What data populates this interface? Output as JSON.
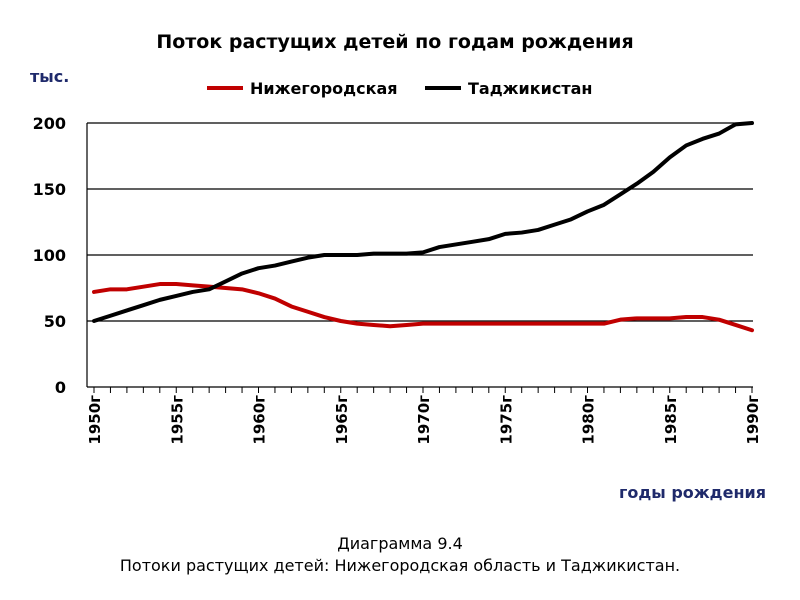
{
  "chart_data": {
    "type": "line",
    "title": "Поток растущих детей  по годам рождения",
    "ylabel": "тыс.",
    "xlabel": "годы рождения",
    "ylim": [
      0,
      200
    ],
    "yticks": [
      0,
      50,
      100,
      150,
      200
    ],
    "grid": true,
    "legend_position": "top",
    "x_tick_labels": [
      "1950г",
      "1955г",
      "1960г",
      "1965г",
      "1970г",
      "1975г",
      "1980г",
      "1985г",
      "1990г"
    ],
    "x": [
      1950,
      1951,
      1952,
      1953,
      1954,
      1955,
      1956,
      1957,
      1958,
      1959,
      1960,
      1961,
      1962,
      1963,
      1964,
      1965,
      1966,
      1967,
      1968,
      1969,
      1970,
      1971,
      1972,
      1973,
      1974,
      1975,
      1976,
      1977,
      1978,
      1979,
      1980,
      1981,
      1982,
      1983,
      1984,
      1985,
      1986,
      1987,
      1988,
      1989,
      1990
    ],
    "series": [
      {
        "name": "Нижегородская",
        "color": "#c00000",
        "values": [
          72,
          74,
          74,
          76,
          78,
          78,
          77,
          76,
          75,
          74,
          71,
          67,
          61,
          57,
          53,
          50,
          48,
          47,
          46,
          47,
          48,
          48,
          48,
          48,
          48,
          48,
          48,
          48,
          48,
          48,
          48,
          48,
          51,
          52,
          52,
          52,
          53,
          53,
          51,
          47,
          43
        ]
      },
      {
        "name": "Таджикистан",
        "color": "#000000",
        "values": [
          50,
          54,
          58,
          62,
          66,
          69,
          72,
          74,
          80,
          86,
          90,
          92,
          95,
          98,
          100,
          100,
          100,
          101,
          101,
          101,
          102,
          106,
          108,
          110,
          112,
          116,
          117,
          119,
          123,
          127,
          133,
          138,
          146,
          154,
          163,
          174,
          183,
          188,
          192,
          199,
          200
        ]
      }
    ]
  },
  "caption": {
    "line1": "Диаграмма 9.4",
    "line2": "Потоки растущих детей: Нижегородская область и Таджикистан."
  }
}
